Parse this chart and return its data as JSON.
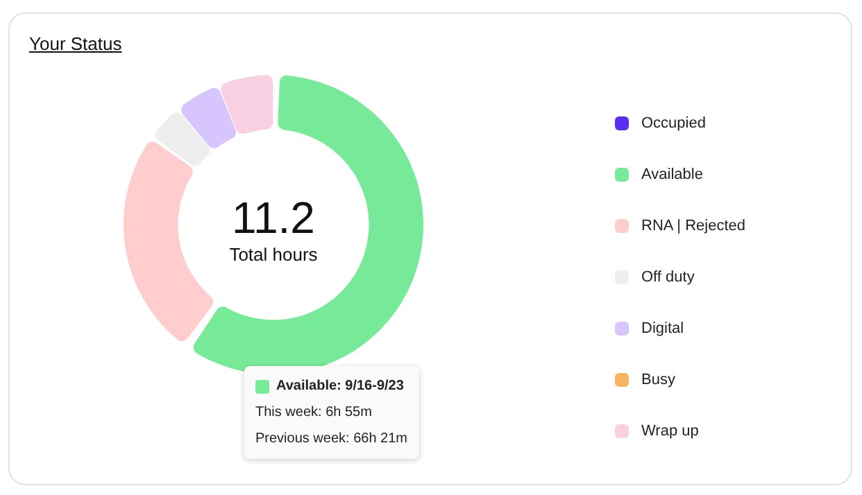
{
  "chart_data": {
    "type": "donut",
    "title": "Your Status",
    "categories": [
      "Occupied",
      "Available",
      "RNA | Rejected",
      "Off duty",
      "Digital",
      "Busy",
      "Wrap up"
    ],
    "values": [
      0,
      60,
      25,
      4,
      5,
      0,
      6
    ],
    "colors": [
      "#5b2ff0",
      "#77ea9a",
      "#ffcdcd",
      "#eeeeee",
      "#d6c6fd",
      "#f8b462",
      "#f9d0e2"
    ],
    "legend": "right",
    "annotations": [
      "11.2",
      "Total hours",
      "Available: 9/16-9/23",
      "This week: 6h 55m",
      "Previous week: 66h 21m"
    ]
  }
}
